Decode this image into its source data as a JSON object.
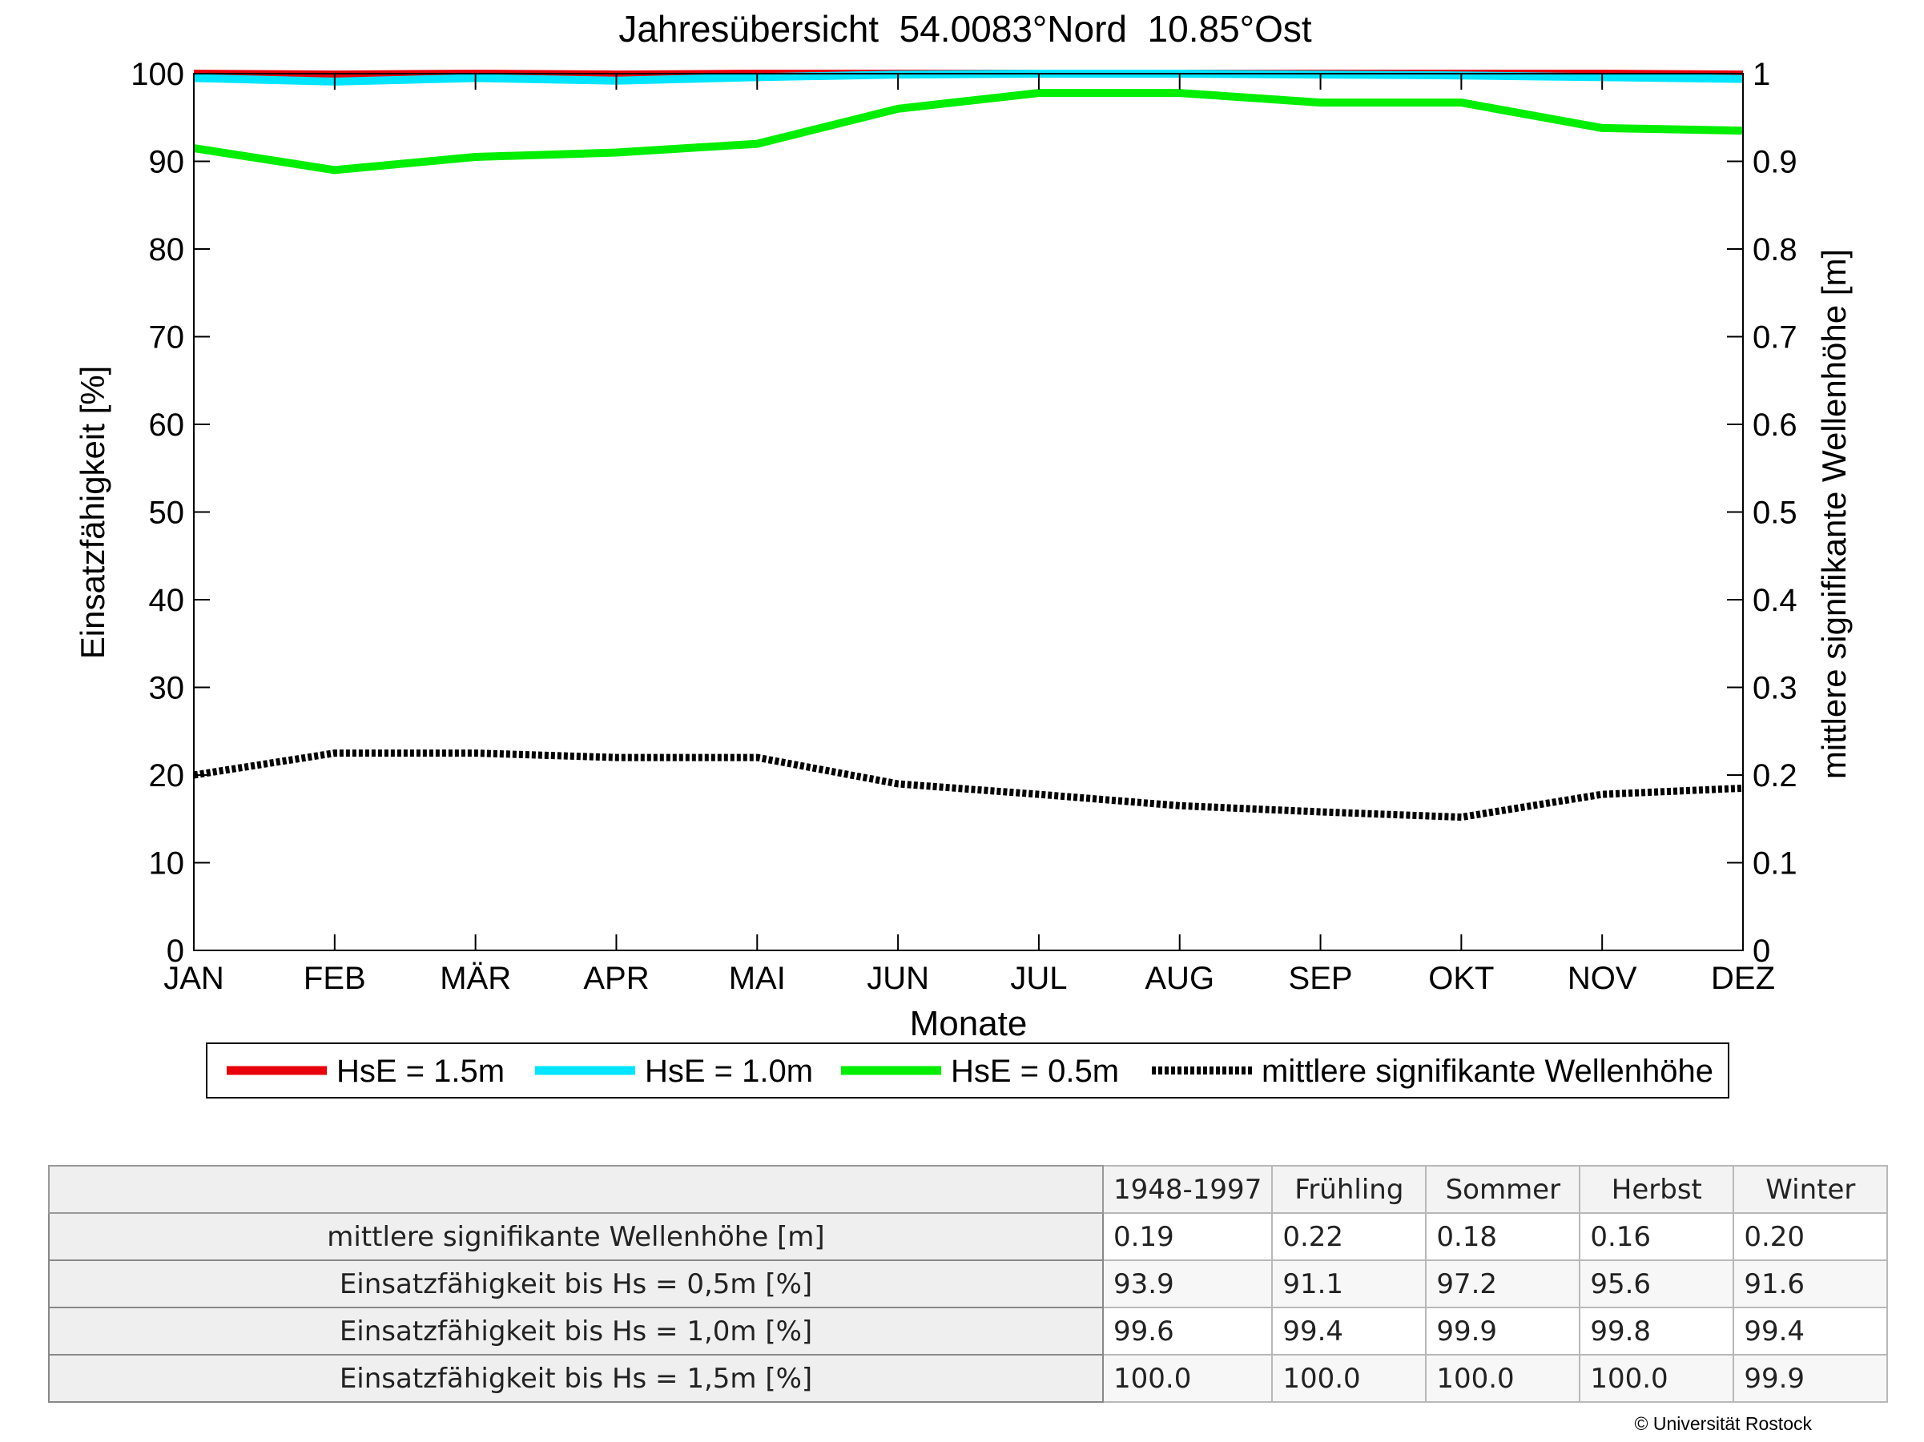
{
  "chart_data": {
    "type": "line",
    "title": "Jahresübersicht  54.0083°Nord  10.85°Ost",
    "xlabel": "Monate",
    "ylabel_left": "Einsatzfähigkeit [%]",
    "ylabel_right": "mittlere signifikante Wellenhöhe [m]",
    "categories": [
      "JAN",
      "FEB",
      "MÄR",
      "APR",
      "MAI",
      "JUN",
      "JUL",
      "AUG",
      "SEP",
      "OKT",
      "NOV",
      "DEZ"
    ],
    "ylim_left": [
      0,
      100
    ],
    "ylim_right": [
      0,
      1
    ],
    "yticks_left": [
      "0",
      "10",
      "20",
      "30",
      "40",
      "50",
      "60",
      "70",
      "80",
      "90",
      "100"
    ],
    "yticks_right": [
      "0",
      "0.1",
      "0.2",
      "0.3",
      "0.4",
      "0.5",
      "0.6",
      "0.7",
      "0.8",
      "0.9",
      "1"
    ],
    "grid": false,
    "legend_position": "bottom",
    "series": [
      {
        "name": "HsE = 1.5m",
        "axis": "left",
        "color": "#e8000b",
        "style": "solid",
        "values": [
          100,
          99.9,
          100,
          99.9,
          100,
          100,
          100,
          100,
          100,
          100,
          100,
          99.9
        ]
      },
      {
        "name": "HsE = 1.0m",
        "axis": "left",
        "color": "#00e5ff",
        "style": "solid",
        "values": [
          99.5,
          99.1,
          99.5,
          99.2,
          99.6,
          99.9,
          100,
          100,
          99.9,
          99.8,
          99.6,
          99.4
        ]
      },
      {
        "name": "HsE = 0.5m",
        "axis": "left",
        "color": "#00ee00",
        "style": "solid",
        "values": [
          91.5,
          89,
          90.5,
          91,
          92,
          96,
          97.8,
          97.8,
          96.7,
          96.7,
          93.8,
          93.5
        ]
      },
      {
        "name": "mittlere signifikante Wellenhöhe",
        "axis": "right",
        "color": "#000000",
        "style": "dotted",
        "values": [
          0.2,
          0.225,
          0.225,
          0.22,
          0.22,
          0.19,
          0.178,
          0.165,
          0.158,
          0.152,
          0.178,
          0.185
        ]
      }
    ]
  },
  "table": {
    "headers": [
      "1948-1997",
      "Frühling",
      "Sommer",
      "Herbst",
      "Winter"
    ],
    "rows": [
      {
        "label": "mittlere signifikante Wellenhöhe [m]",
        "values": [
          "0.19",
          "0.22",
          "0.18",
          "0.16",
          "0.20"
        ]
      },
      {
        "label": "Einsatzfähigkeit bis Hs = 0,5m [%]",
        "values": [
          "93.9",
          "91.1",
          "97.2",
          "95.6",
          "91.6"
        ]
      },
      {
        "label": "Einsatzfähigkeit bis Hs = 1,0m [%]",
        "values": [
          "99.6",
          "99.4",
          "99.9",
          "99.8",
          "99.4"
        ]
      },
      {
        "label": "Einsatzfähigkeit bis Hs = 1,5m [%]",
        "values": [
          "100.0",
          "100.0",
          "100.0",
          "100.0",
          "99.9"
        ]
      }
    ]
  },
  "copyright": "© Universität Rostock"
}
